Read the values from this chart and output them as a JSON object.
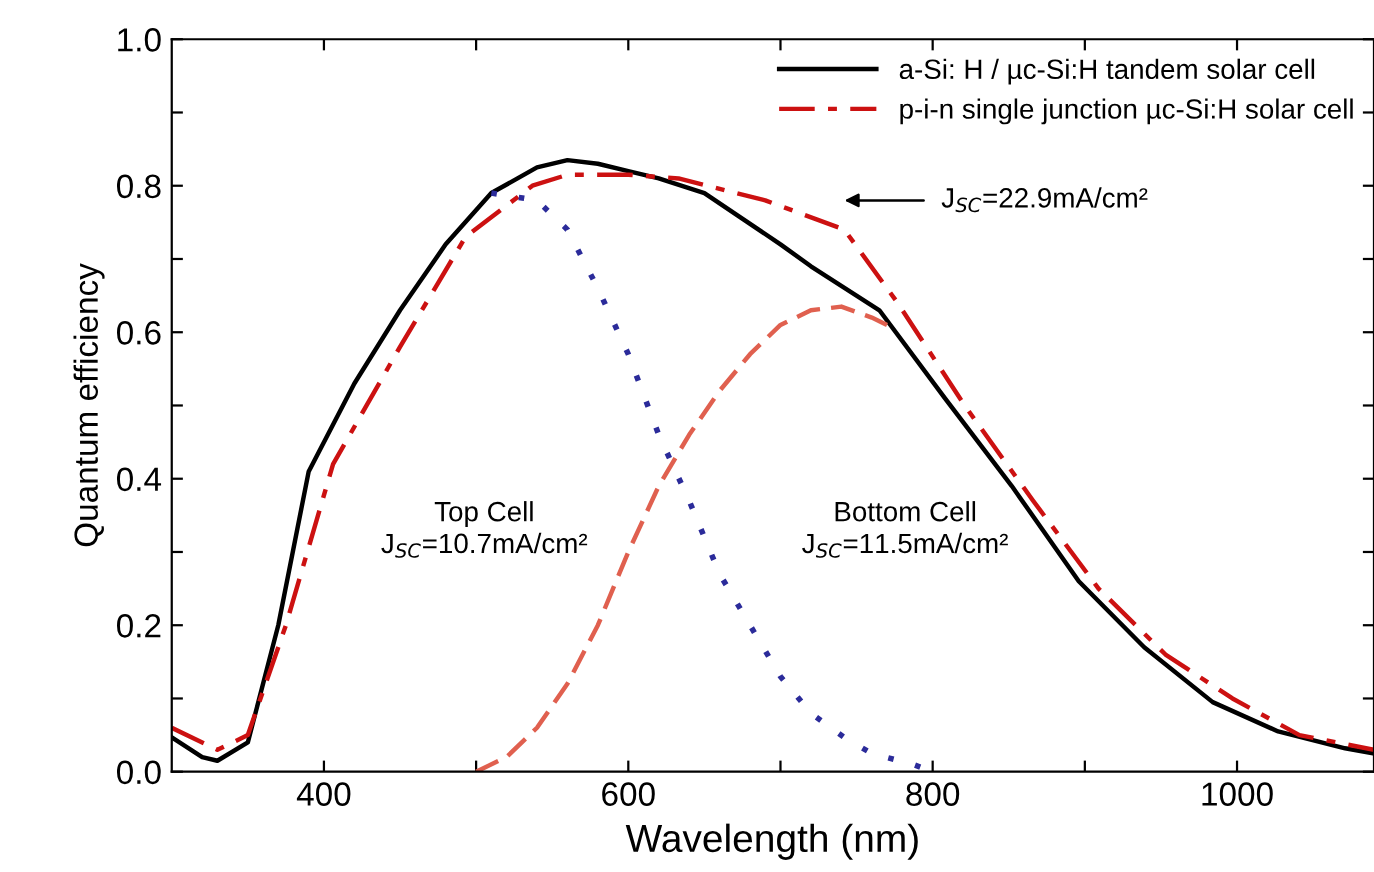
{
  "chart_data": {
    "type": "line",
    "xlabel": "Wavelength (nm)",
    "ylabel": "Quantum efficiency",
    "xlim": [
      300,
      1090
    ],
    "ylim": [
      0,
      1
    ],
    "xticks": [
      400,
      {
        "value": 500,
        "label": null
      },
      600,
      {
        "value": 700,
        "label": null
      },
      800,
      {
        "value": 900,
        "label": null
      },
      1000
    ],
    "yticks": [
      {
        "value": 0,
        "label": "0.0"
      },
      {
        "value": 0.1,
        "label": null
      },
      {
        "value": 0.2,
        "label": "0.2"
      },
      {
        "value": 0.3,
        "label": null
      },
      {
        "value": 0.4,
        "label": "0.4"
      },
      {
        "value": 0.5,
        "label": null
      },
      {
        "value": 0.6,
        "label": "0.6"
      },
      {
        "value": 0.7,
        "label": null
      },
      {
        "value": 0.8,
        "label": "0.8"
      },
      {
        "value": 0.9,
        "label": null
      },
      {
        "value": 1.0,
        "label": "1.0"
      }
    ],
    "grid": false,
    "legend": "top right",
    "marker": "none",
    "series": [
      {
        "name": "a-Si: H / µc-Si:H tandem solar cell",
        "color": "#000000",
        "line_style": "solid",
        "x": [
          300,
          320,
          330,
          350,
          370,
          390,
          420,
          450,
          480,
          510,
          540,
          560,
          580,
          600,
          620,
          650,
          700,
          720,
          765,
          808,
          852,
          896,
          939,
          984,
          1027,
          1071,
          1090
        ],
        "values": [
          0.047,
          0.02,
          0.015,
          0.04,
          0.2,
          0.41,
          0.53,
          0.63,
          0.72,
          0.79,
          0.825,
          0.835,
          0.83,
          0.82,
          0.81,
          0.79,
          0.72,
          0.69,
          0.63,
          0.51,
          0.39,
          0.26,
          0.17,
          0.095,
          0.055,
          0.032,
          0.025
        ]
      },
      {
        "name": "p-i-n single junction µc-Si:H solar cell",
        "color": "#cc1111",
        "line_style": "dashdot",
        "x": [
          300,
          330,
          350,
          375,
          406,
          450,
          493,
          537,
          560,
          600,
          633,
          690,
          742,
          777,
          821,
          866,
          909,
          953,
          997,
          1041,
          1090
        ],
        "values": [
          0.06,
          0.03,
          0.05,
          0.2,
          0.42,
          0.58,
          0.73,
          0.8,
          0.815,
          0.815,
          0.81,
          0.78,
          0.74,
          0.64,
          0.5,
          0.37,
          0.25,
          0.16,
          0.1,
          0.05,
          0.03
        ]
      },
      {
        "color": "#2b2b9a",
        "line_style": "dotted",
        "x": [
          510,
          540,
          560,
          580,
          600,
          620,
          640,
          660,
          680,
          700,
          720,
          743,
          760,
          787,
          800
        ],
        "values": [
          0.79,
          0.78,
          0.74,
          0.66,
          0.57,
          0.46,
          0.37,
          0.27,
          0.2,
          0.13,
          0.08,
          0.045,
          0.025,
          0.01,
          0.0
        ]
      },
      {
        "color": "#e0604f",
        "line_style": "dashed",
        "x": [
          500,
          520,
          540,
          560,
          580,
          600,
          620,
          640,
          660,
          680,
          700,
          720,
          740,
          760,
          770
        ],
        "values": [
          0.0,
          0.02,
          0.06,
          0.12,
          0.2,
          0.3,
          0.39,
          0.46,
          0.52,
          0.57,
          0.61,
          0.63,
          0.635,
          0.62,
          0.61
        ]
      }
    ],
    "annotations": [
      "J$_{SC}$=22.9mA/cm²",
      "Top Cell\nJ$_{SC}$=10.7mA/cm²",
      "Bottom Cell\nJ$_{SC}$=11.5mA/cm²"
    ]
  }
}
